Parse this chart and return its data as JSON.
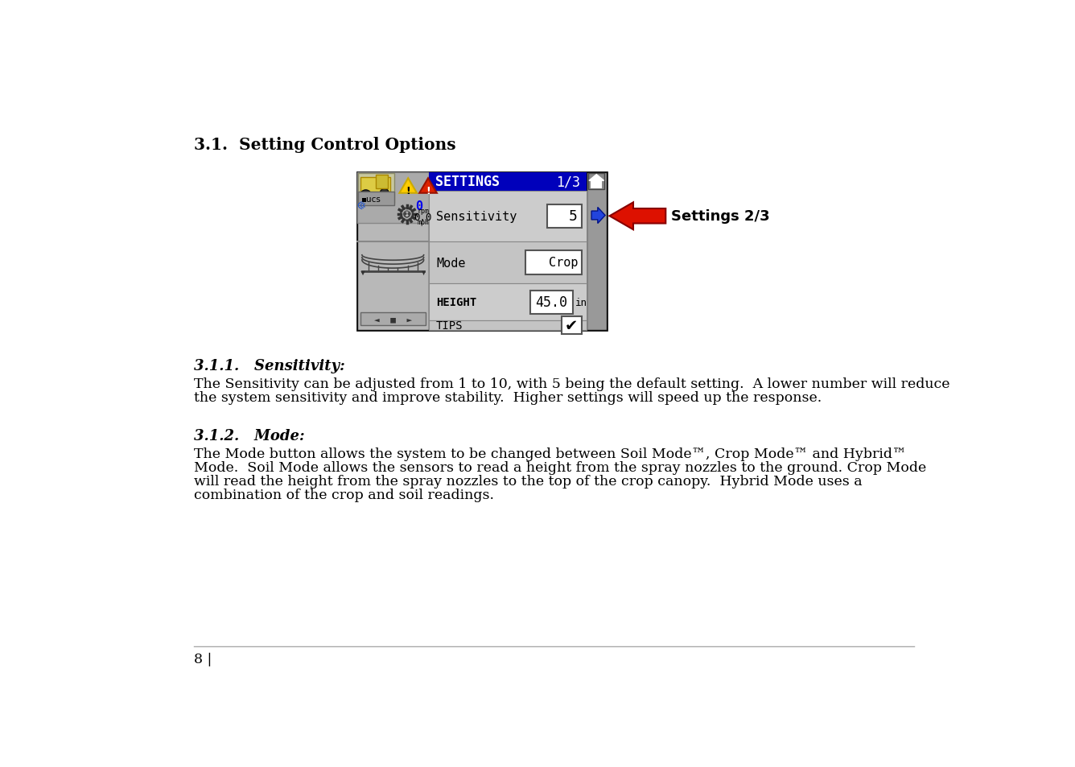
{
  "title_31": "3.1.  Setting Control Options",
  "title_311": "3.1.1.   Sensitivity:",
  "title_312": "3.1.2.   Mode:",
  "body_311_1": "The Sensitivity can be adjusted from 1 to 10, with 5 being the default setting.  A lower number will reduce",
  "body_311_2": "the system sensitivity and improve stability.  Higher settings will speed up the response.",
  "body_312_1": "The Mode button allows the system to be changed between Soil Mode™, Crop Mode™ and Hybrid™",
  "body_312_2": "Mode.  Soil Mode allows the sensors to read a height from the spray nozzles to the ground. Crop Mode",
  "body_312_3": "will read the height from the spray nozzles to the top of the crop canopy.  Hybrid Mode uses a",
  "body_312_4": "combination of the crop and soil readings.",
  "footer": "8 |",
  "settings_label": "SETTINGS",
  "settings_page": "1/3",
  "sensitivity_label": "Sensitivity",
  "sensitivity_value": "5",
  "mode_label": "Mode",
  "mode_value": "Crop",
  "height_label": "HEIGHT",
  "height_value": "45.0",
  "height_unit": "in",
  "tips_label": "TIPS",
  "arrow_label": "Settings 2/3",
  "bg_color": "#ffffff",
  "screen_bg": "#c0c0c0",
  "screen_bg2": "#b0b0b0",
  "header_bg": "#0000bb",
  "header_text": "#ffffff",
  "screen_border": "#111111",
  "field_bg": "#ffffff",
  "field_border": "#666666",
  "nav_arrow_color": "#2244dd",
  "red_arrow_color": "#dd1100",
  "rpm_text_color": "#0000ff"
}
